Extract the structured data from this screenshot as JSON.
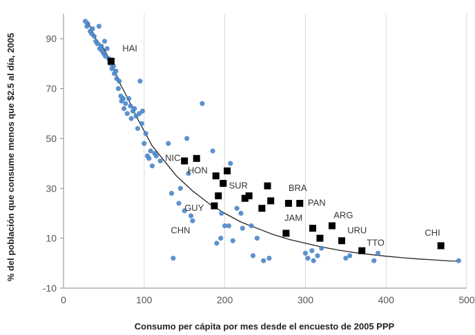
{
  "chart_data": {
    "type": "scatter",
    "title": "",
    "xlabel": "Consumo per cápita por mes desde el encuesto de 2005 PPP",
    "ylabel": "% del población que consume menos que $2.5 al día, 2005",
    "xlim": [
      0,
      500
    ],
    "ylim": [
      -10,
      100
    ],
    "x_ticks": [
      "0",
      "100",
      "200",
      "300",
      "400",
      "500"
    ],
    "y_ticks": [
      "-10",
      "10",
      "30",
      "50",
      "70",
      "90"
    ],
    "grid": "vertical gridlines",
    "legend": "none",
    "colors": {
      "countries": "#4a86c8",
      "highlighted": "#000000",
      "trend": "#222222"
    },
    "series": [
      {
        "marker": "circle",
        "points": [
          [
            27,
            97
          ],
          [
            29,
            95
          ],
          [
            30,
            96
          ],
          [
            33,
            93
          ],
          [
            35,
            92
          ],
          [
            36,
            94
          ],
          [
            38,
            91
          ],
          [
            40,
            89
          ],
          [
            42,
            88
          ],
          [
            44,
            95
          ],
          [
            45,
            86
          ],
          [
            47,
            87
          ],
          [
            48,
            85
          ],
          [
            50,
            84
          ],
          [
            51,
            89
          ],
          [
            52,
            83
          ],
          [
            54,
            86
          ],
          [
            56,
            82
          ],
          [
            58,
            80
          ],
          [
            60,
            78
          ],
          [
            62,
            79
          ],
          [
            63,
            76
          ],
          [
            65,
            77
          ],
          [
            66,
            74
          ],
          [
            68,
            70
          ],
          [
            69,
            73
          ],
          [
            71,
            67
          ],
          [
            72,
            65
          ],
          [
            74,
            66
          ],
          [
            75,
            62
          ],
          [
            77,
            64
          ],
          [
            79,
            60
          ],
          [
            81,
            66
          ],
          [
            83,
            63
          ],
          [
            84,
            58
          ],
          [
            86,
            61
          ],
          [
            88,
            62
          ],
          [
            90,
            59
          ],
          [
            92,
            54
          ],
          [
            94,
            60
          ],
          [
            95,
            73
          ],
          [
            97,
            56
          ],
          [
            98,
            61
          ],
          [
            100,
            48
          ],
          [
            102,
            52
          ],
          [
            104,
            43
          ],
          [
            106,
            42
          ],
          [
            108,
            45
          ],
          [
            110,
            39
          ],
          [
            113,
            44
          ],
          [
            115,
            43
          ],
          [
            120,
            41
          ],
          [
            130,
            48
          ],
          [
            134,
            28
          ],
          [
            136,
            2
          ],
          [
            143,
            24
          ],
          [
            145,
            30
          ],
          [
            150,
            21
          ],
          [
            153,
            50
          ],
          [
            155,
            36
          ],
          [
            158,
            19
          ],
          [
            160,
            17
          ],
          [
            172,
            64
          ],
          [
            185,
            45
          ],
          [
            190,
            8
          ],
          [
            195,
            10
          ],
          [
            196,
            20
          ],
          [
            200,
            15
          ],
          [
            205,
            15
          ],
          [
            207,
            40
          ],
          [
            210,
            9
          ],
          [
            215,
            22
          ],
          [
            220,
            20
          ],
          [
            222,
            14
          ],
          [
            233,
            15
          ],
          [
            235,
            3
          ],
          [
            240,
            10
          ],
          [
            248,
            1
          ],
          [
            255,
            2
          ],
          [
            300,
            4
          ],
          [
            303,
            2
          ],
          [
            308,
            5
          ],
          [
            310,
            1
          ],
          [
            315,
            3
          ],
          [
            320,
            6
          ],
          [
            350,
            2
          ],
          [
            355,
            3
          ],
          [
            385,
            1
          ],
          [
            390,
            4
          ],
          [
            490,
            1
          ]
        ]
      },
      {
        "marker": "square",
        "points": [
          {
            "x": 59,
            "y": 81,
            "label": "HAI"
          },
          {
            "x": 150,
            "y": 41,
            "label": "NIC"
          },
          {
            "x": 165,
            "y": 42,
            "label": "HON"
          },
          {
            "x": 203,
            "y": 37,
            "label": ""
          },
          {
            "x": 189,
            "y": 35,
            "label": ""
          },
          {
            "x": 198,
            "y": 32,
            "label": "SUR"
          },
          {
            "x": 192,
            "y": 27,
            "label": ""
          },
          {
            "x": 187,
            "y": 23,
            "label": "GUY"
          },
          {
            "x": 225,
            "y": 26,
            "label": ""
          },
          {
            "x": 230,
            "y": 27,
            "label": ""
          },
          {
            "x": 253,
            "y": 31,
            "label": ""
          },
          {
            "x": 257,
            "y": 25,
            "label": ""
          },
          {
            "x": 246,
            "y": 22,
            "label": ""
          },
          {
            "x": 279,
            "y": 24,
            "label": "BRA"
          },
          {
            "x": 293,
            "y": 24,
            "label": "PAN"
          },
          {
            "x": 276,
            "y": 12,
            "label": "JAM"
          },
          {
            "x": 309,
            "y": 14,
            "label": ""
          },
          {
            "x": 318,
            "y": 10,
            "label": ""
          },
          {
            "x": 333,
            "y": 15,
            "label": "ARG"
          },
          {
            "x": 345,
            "y": 9,
            "label": "URU"
          },
          {
            "x": 370,
            "y": 5,
            "label": "TTO"
          },
          {
            "x": 468,
            "y": 7,
            "label": "CHI"
          }
        ]
      }
    ],
    "annotations": [
      {
        "text": "HAI",
        "x": 73,
        "y": 85
      },
      {
        "text": "NIC",
        "x": 126,
        "y": 41
      },
      {
        "text": "HON",
        "x": 154,
        "y": 36
      },
      {
        "text": "SUR",
        "x": 205,
        "y": 30
      },
      {
        "text": "GUY",
        "x": 150,
        "y": 21
      },
      {
        "text": "CHN",
        "x": 133,
        "y": 12
      },
      {
        "text": "BRA",
        "x": 279,
        "y": 29
      },
      {
        "text": "PAN",
        "x": 303,
        "y": 23
      },
      {
        "text": "JAM",
        "x": 274,
        "y": 17
      },
      {
        "text": "ARG",
        "x": 335,
        "y": 18
      },
      {
        "text": "URU",
        "x": 352,
        "y": 12
      },
      {
        "text": "TTO",
        "x": 376,
        "y": 7
      },
      {
        "text": "CHI",
        "x": 448,
        "y": 11
      }
    ],
    "trendline": [
      [
        30,
        97
      ],
      [
        40,
        90
      ],
      [
        50,
        86
      ],
      [
        60,
        80
      ],
      [
        70,
        72
      ],
      [
        80,
        66
      ],
      [
        90,
        59
      ],
      [
        100,
        53
      ],
      [
        110,
        47
      ],
      [
        120,
        43
      ],
      [
        130,
        39
      ],
      [
        140,
        35
      ],
      [
        150,
        32
      ],
      [
        160,
        29
      ],
      [
        180,
        24
      ],
      [
        200,
        20
      ],
      [
        220,
        16.5
      ],
      [
        240,
        14
      ],
      [
        260,
        11.5
      ],
      [
        280,
        9.5
      ],
      [
        300,
        8
      ],
      [
        320,
        6.5
      ],
      [
        340,
        5.3
      ],
      [
        360,
        4.3
      ],
      [
        380,
        3.5
      ],
      [
        400,
        2.8
      ],
      [
        420,
        2.2
      ],
      [
        440,
        1.7
      ],
      [
        460,
        1.3
      ],
      [
        480,
        0.9
      ],
      [
        490,
        0.8
      ]
    ]
  }
}
